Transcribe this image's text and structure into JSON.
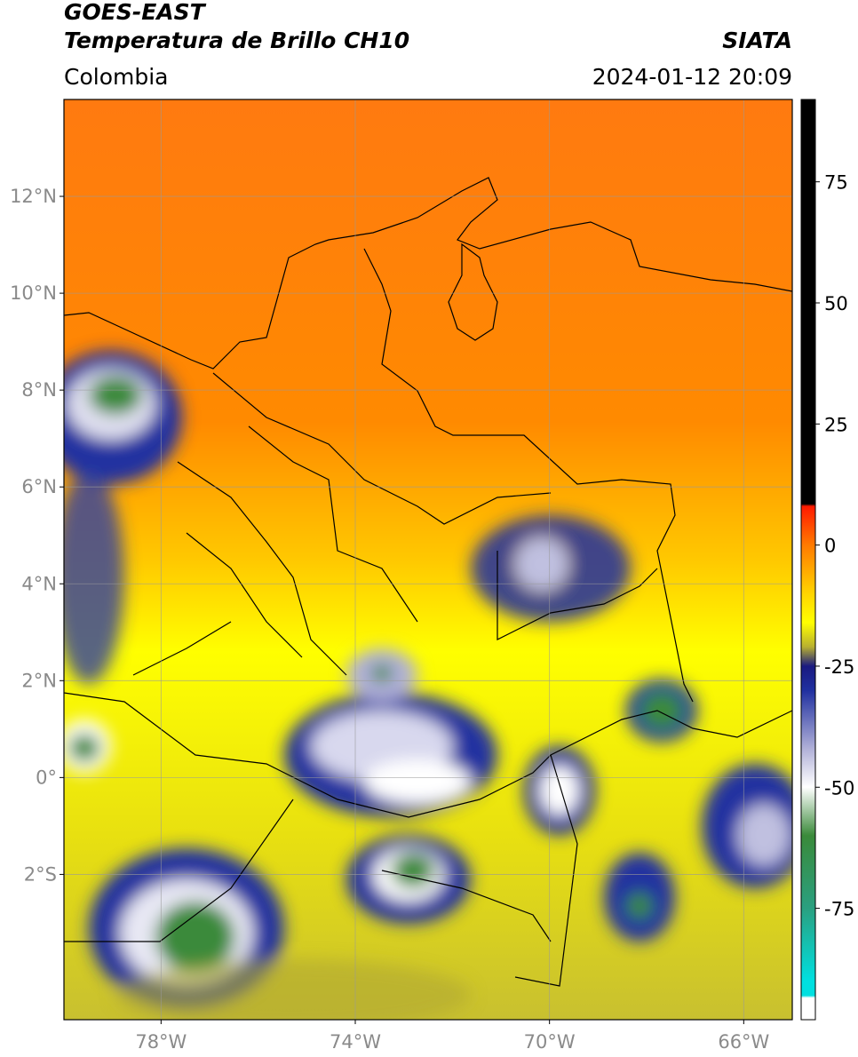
{
  "header": {
    "satellite": "GOES-EAST",
    "product": "Temperatura de Brillo CH10",
    "region": "Colombia",
    "source": "SIATA",
    "datetime": "2024-01-12 20:09"
  },
  "map": {
    "xlim": [
      -80,
      -65
    ],
    "ylim": [
      -5,
      14
    ],
    "xticks": [
      {
        "value": -78,
        "label": "78°W"
      },
      {
        "value": -74,
        "label": "74°W"
      },
      {
        "value": -70,
        "label": "70°W"
      },
      {
        "value": -66,
        "label": "66°W"
      }
    ],
    "yticks": [
      {
        "value": 12,
        "label": "12°N"
      },
      {
        "value": 10,
        "label": "10°N"
      },
      {
        "value": 8,
        "label": "8°N"
      },
      {
        "value": 6,
        "label": "6°N"
      },
      {
        "value": 4,
        "label": "4°N"
      },
      {
        "value": 2,
        "label": "2°N"
      },
      {
        "value": 0,
        "label": "0°"
      },
      {
        "value": -2,
        "label": "2°S"
      }
    ],
    "grid": true
  },
  "colorbar": {
    "lim": [
      -98,
      92
    ],
    "ticks": [
      75,
      50,
      25,
      0,
      -25,
      -50,
      -75
    ],
    "colormap": [
      {
        "value": 92,
        "color": "#000000"
      },
      {
        "value": 8.5,
        "color": "#000000"
      },
      {
        "value": 8,
        "color": "#ff1a00"
      },
      {
        "value": 0,
        "color": "#ff7a00"
      },
      {
        "value": -10,
        "color": "#ffd400"
      },
      {
        "value": -16,
        "color": "#ffff00"
      },
      {
        "value": -21,
        "color": "#b8b030"
      },
      {
        "value": -25,
        "color": "#1a1a80"
      },
      {
        "value": -30,
        "color": "#2030a0"
      },
      {
        "value": -42,
        "color": "#b0b0d8"
      },
      {
        "value": -50,
        "color": "#ffffff"
      },
      {
        "value": -60,
        "color": "#3a8a3a"
      },
      {
        "value": -75,
        "color": "#2aa080"
      },
      {
        "value": -90,
        "color": "#00e0e0"
      },
      {
        "value": -93,
        "color": "#00e0e0"
      },
      {
        "value": -93.5,
        "color": "#ffffff"
      },
      {
        "value": -98,
        "color": "#ffffff"
      }
    ]
  }
}
